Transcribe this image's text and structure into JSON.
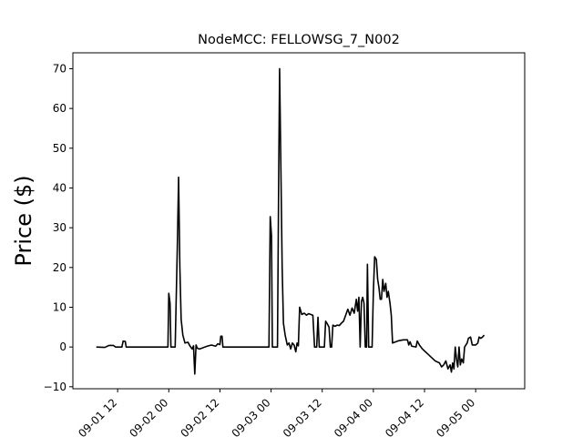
{
  "chart_data": {
    "type": "line",
    "title": "NodeMCC: FELLOWSG_7_N002",
    "xlabel": "",
    "ylabel": "Price ($)",
    "ylim": [
      -10.5,
      74
    ],
    "xlim": [
      -5.5,
      100.5
    ],
    "grid": false,
    "y_ticks": [
      -10,
      0,
      10,
      20,
      30,
      40,
      50,
      60,
      70
    ],
    "x_ticks": [
      {
        "value": 5,
        "label": "09-01 12"
      },
      {
        "value": 17,
        "label": "09-02 00"
      },
      {
        "value": 29,
        "label": "09-02 12"
      },
      {
        "value": 41,
        "label": "09-03 00"
      },
      {
        "value": 53,
        "label": "09-03 12"
      },
      {
        "value": 65,
        "label": "09-04 00"
      },
      {
        "value": 77,
        "label": "09-04 12"
      },
      {
        "value": 89,
        "label": "09-05 00"
      }
    ],
    "series": [
      {
        "color": "#000000",
        "points": [
          [
            0,
            0
          ],
          [
            2,
            -0.1
          ],
          [
            3,
            0.4
          ],
          [
            4,
            0.4
          ],
          [
            4.5,
            0
          ],
          [
            6,
            0
          ],
          [
            6.3,
            1.5
          ],
          [
            6.8,
            1.4
          ],
          [
            7,
            0
          ],
          [
            8,
            0
          ],
          [
            10,
            0
          ],
          [
            12,
            0
          ],
          [
            14,
            0
          ],
          [
            16,
            0
          ],
          [
            16.8,
            0
          ],
          [
            17,
            13.5
          ],
          [
            17.3,
            11
          ],
          [
            17.5,
            0
          ],
          [
            18.5,
            0
          ],
          [
            19,
            25
          ],
          [
            19.3,
            42.7
          ],
          [
            19.6,
            20
          ],
          [
            19.9,
            7
          ],
          [
            20.3,
            3
          ],
          [
            20.8,
            1
          ],
          [
            21.5,
            1.2
          ],
          [
            22,
            0.2
          ],
          [
            22.5,
            -0.5
          ],
          [
            22.8,
            0.3
          ],
          [
            23.1,
            -6.8
          ],
          [
            23.4,
            0.5
          ],
          [
            23.7,
            -0.3
          ],
          [
            24.2,
            -0.5
          ],
          [
            25,
            -0.2
          ],
          [
            26,
            0.2
          ],
          [
            27,
            0.5
          ],
          [
            28,
            0.2
          ],
          [
            28.5,
            0.8
          ],
          [
            29,
            0.6
          ],
          [
            29.2,
            2.7
          ],
          [
            29.5,
            2.7
          ],
          [
            29.7,
            0
          ],
          [
            31,
            0
          ],
          [
            33,
            0
          ],
          [
            35,
            0
          ],
          [
            37,
            0
          ],
          [
            39,
            0
          ],
          [
            40.5,
            0
          ],
          [
            40.8,
            32.8
          ],
          [
            41.1,
            28
          ],
          [
            41.3,
            0
          ],
          [
            42.5,
            0
          ],
          [
            42.8,
            45
          ],
          [
            43,
            70
          ],
          [
            43.3,
            45
          ],
          [
            43.6,
            20
          ],
          [
            43.9,
            6
          ],
          [
            44.3,
            3
          ],
          [
            44.8,
            0.5
          ],
          [
            45.2,
            1
          ],
          [
            45.6,
            -0.5
          ],
          [
            46,
            1
          ],
          [
            46.4,
            0.5
          ],
          [
            46.8,
            -1.2
          ],
          [
            47.1,
            1
          ],
          [
            47.4,
            0.3
          ],
          [
            47.7,
            10
          ],
          [
            48.2,
            8.2
          ],
          [
            48.8,
            8.5
          ],
          [
            49.3,
            8
          ],
          [
            49.8,
            8.4
          ],
          [
            50.3,
            8.2
          ],
          [
            50.8,
            8
          ],
          [
            51.2,
            0
          ],
          [
            51.7,
            0
          ],
          [
            52,
            7.5
          ],
          [
            52.3,
            0
          ],
          [
            53.5,
            0
          ],
          [
            53.8,
            6.5
          ],
          [
            54.2,
            5.8
          ],
          [
            54.6,
            5
          ],
          [
            54.9,
            0
          ],
          [
            55.2,
            0
          ],
          [
            55.5,
            5.5
          ],
          [
            56,
            5.2
          ],
          [
            56.5,
            5.5
          ],
          [
            57,
            5.4
          ],
          [
            57.5,
            6
          ],
          [
            58,
            6.5
          ],
          [
            58.5,
            8
          ],
          [
            59,
            9.5
          ],
          [
            59.5,
            8
          ],
          [
            60,
            9.8
          ],
          [
            60.5,
            8.5
          ],
          [
            61,
            12
          ],
          [
            61.3,
            9
          ],
          [
            61.6,
            12.5
          ],
          [
            61.9,
            0
          ],
          [
            62.2,
            11.5
          ],
          [
            62.5,
            12.5
          ],
          [
            62.8,
            11
          ],
          [
            63.1,
            0
          ],
          [
            63.4,
            0
          ],
          [
            63.6,
            20.8
          ],
          [
            63.9,
            0
          ],
          [
            64.7,
            0
          ],
          [
            65,
            14
          ],
          [
            65.3,
            22.7
          ],
          [
            65.7,
            22
          ],
          [
            66,
            17
          ],
          [
            66.3,
            15
          ],
          [
            66.6,
            12
          ],
          [
            66.9,
            12
          ],
          [
            67.2,
            17
          ],
          [
            67.5,
            14
          ],
          [
            67.9,
            16
          ],
          [
            68.2,
            12.5
          ],
          [
            68.5,
            14
          ],
          [
            68.9,
            11
          ],
          [
            69.2,
            8
          ],
          [
            69.5,
            1
          ],
          [
            70,
            1.2
          ],
          [
            71,
            1.6
          ],
          [
            72,
            1.8
          ],
          [
            73,
            1.8
          ],
          [
            73.3,
            0.5
          ],
          [
            73.6,
            1.3
          ],
          [
            74,
            0.2
          ],
          [
            75,
            0
          ],
          [
            75.3,
            1.5
          ],
          [
            75.8,
            0.5
          ],
          [
            76.5,
            -0.5
          ],
          [
            77.5,
            -1.5
          ],
          [
            78.5,
            -2.5
          ],
          [
            79.5,
            -3.5
          ],
          [
            80.5,
            -4
          ],
          [
            81,
            -5
          ],
          [
            81.5,
            -4.5
          ],
          [
            82,
            -3.5
          ],
          [
            82.5,
            -5.5
          ],
          [
            83,
            -4.5
          ],
          [
            83.3,
            -6.3
          ],
          [
            83.6,
            -4
          ],
          [
            83.9,
            -5.5
          ],
          [
            84.2,
            0
          ],
          [
            84.5,
            -3
          ],
          [
            84.8,
            -5
          ],
          [
            85.1,
            0
          ],
          [
            85.4,
            -4.5
          ],
          [
            85.7,
            -3
          ],
          [
            86.1,
            -4
          ],
          [
            86.4,
            0
          ],
          [
            86.7,
            0.5
          ],
          [
            87,
            1
          ],
          [
            87.3,
            2.2
          ],
          [
            87.8,
            2.5
          ],
          [
            88.2,
            0.5
          ],
          [
            89,
            0.5
          ],
          [
            89.5,
            1
          ],
          [
            89.8,
            2.5
          ],
          [
            90.2,
            2.2
          ],
          [
            90.6,
            2.5
          ],
          [
            91,
            3
          ]
        ]
      }
    ]
  }
}
